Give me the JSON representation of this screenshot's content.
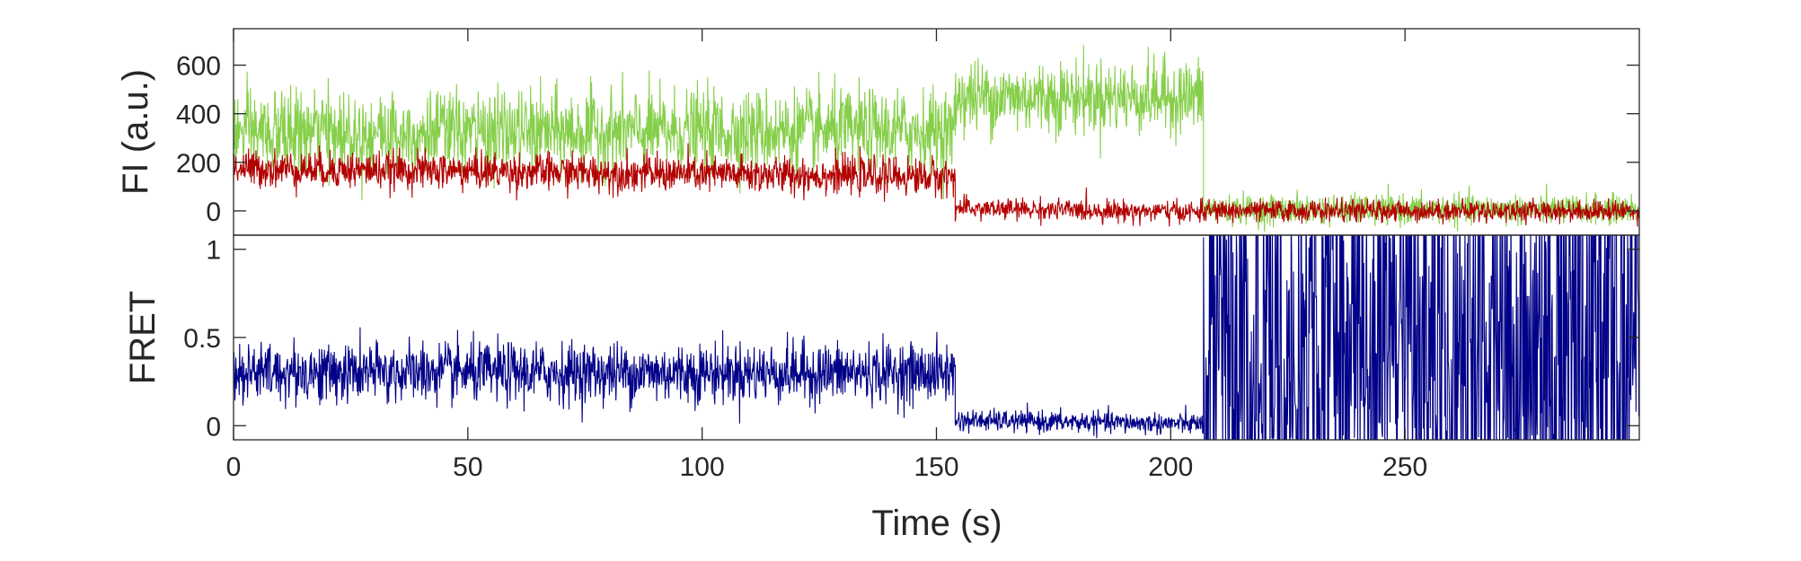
{
  "chart_data": [
    {
      "type": "line",
      "title": "",
      "xlabel": "",
      "ylabel": "FI (a.u.)",
      "xlim": [
        0,
        300
      ],
      "ylim": [
        -100,
        750
      ],
      "yticks": [
        0,
        200,
        400,
        600
      ],
      "grid": false,
      "series": [
        {
          "color": "#86cf4a",
          "segments": [
            {
              "x_start": 0,
              "x_end": 154,
              "mean": 320,
              "std": 85,
              "drift_end": 330
            },
            {
              "x_start": 154,
              "x_end": 207,
              "mean": 470,
              "std": 75,
              "drift_end": 470
            },
            {
              "x_start": 207,
              "x_end": 300,
              "mean": 5,
              "std": 30,
              "drift_end": 5
            }
          ]
        },
        {
          "color": "#b30000",
          "segments": [
            {
              "x_start": 0,
              "x_end": 154,
              "mean": 175,
              "std": 38,
              "drift_end": 140
            },
            {
              "x_start": 154,
              "x_end": 207,
              "mean": 10,
              "std": 22,
              "drift_end": -5
            },
            {
              "x_start": 207,
              "x_end": 300,
              "mean": 0,
              "std": 22,
              "drift_end": 0
            }
          ]
        }
      ]
    },
    {
      "type": "line",
      "title": "",
      "xlabel": "Time (s)",
      "ylabel": "FRET",
      "xlim": [
        0,
        300
      ],
      "ylim": [
        -0.08,
        1.08
      ],
      "xticks": [
        0,
        50,
        100,
        150,
        200,
        250
      ],
      "yticks": [
        0,
        0.5,
        1
      ],
      "ytick_labels": [
        "0",
        "0.5",
        "1"
      ],
      "grid": false,
      "series": [
        {
          "color": "#000088",
          "segments": [
            {
              "x_start": 0,
              "x_end": 154,
              "mean": 0.3,
              "std": 0.085,
              "drift_end": 0.3
            },
            {
              "x_start": 154,
              "x_end": 207,
              "mean": 0.03,
              "std": 0.03,
              "drift_end": 0.01
            },
            {
              "x_start": 207,
              "x_end": 300,
              "mean": 0.5,
              "std": 0.6,
              "drift_end": 0.5
            }
          ]
        }
      ]
    }
  ]
}
